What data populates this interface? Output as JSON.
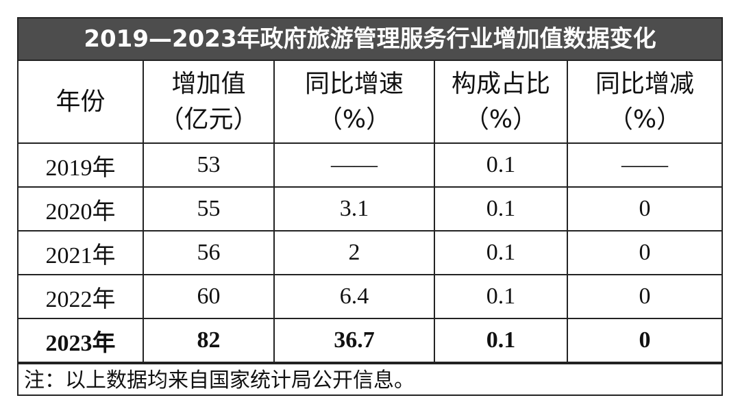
{
  "title": "2019—2023年政府旅游管理服务行业增加值数据变化",
  "table": {
    "columns": [
      {
        "name": "年份"
      },
      {
        "name": "增加值",
        "unit": "（亿元）"
      },
      {
        "name": "同比增速",
        "unit": "（%）"
      },
      {
        "name": "构成占比",
        "unit": "（%）"
      },
      {
        "name": "同比增减",
        "unit": "（%）"
      }
    ],
    "rows": [
      [
        "2019年",
        "53",
        "——",
        "0.1",
        "——"
      ],
      [
        "2020年",
        "55",
        "3.1",
        "0.1",
        "0"
      ],
      [
        "2021年",
        "56",
        "2",
        "0.1",
        "0"
      ],
      [
        "2022年",
        "60",
        "6.4",
        "0.1",
        "0"
      ],
      [
        "2023年",
        "82",
        "36.7",
        "0.1",
        "0"
      ]
    ]
  },
  "note": "注：以上数据均来自国家统计局公开信息。"
}
